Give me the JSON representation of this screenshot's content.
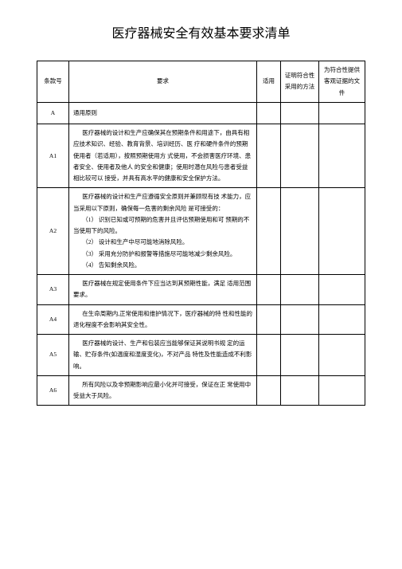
{
  "title": "医疗器械安全有效基本要求清单",
  "headers": {
    "col_num": "条款号",
    "col_req": "要求",
    "col_shiyong": "适用",
    "col_method": "证明符合性采用的方法",
    "col_evidence": "为符合性提供客观证据的文件"
  },
  "rows": [
    {
      "num": "A",
      "req": "通用原则",
      "shiyong": "",
      "method": "",
      "evidence": "",
      "section": true
    },
    {
      "num": "A1",
      "req": "医疗器械的设计和生产应确保其在预期条件和用途下，由具有相应技术知识、经验、教育背景、培训经历、医 疗和硬件条件的预期使用者（若适用），按照预期使用方 式使用，不会损害医疗环境、患者安全、使用者及他人 的安全和健康；使用时潜在风险与患者受益相比较可以 接受，并具有高水平的健康和安全保护方法。",
      "shiyong": "",
      "method": "",
      "evidence": ""
    },
    {
      "num": "A2",
      "req": "医疗器械的设计和生产应遵循安全原则并兼顾现有技 术能力，应当采用以下原则，确保每一危害的剩余风险 是可接受的：\n（1）   识别已知或可预期的危害并且评估预期使用和可 预期的不当使用下的风险。\n（2）   设计和生产中尽可能地消除风险。\n（3）   采用充分防护和报警等措施尽可能地减少剩余风险。\n（4）   告知剩余风险。",
      "shiyong": "",
      "method": "",
      "evidence": ""
    },
    {
      "num": "A3",
      "req": "医疗器械在规定使用条件下应当达到其预期性能，满足 适用范围要求。",
      "shiyong": "",
      "method": "",
      "evidence": ""
    },
    {
      "num": "A4",
      "req": "在生命周期内,正常使用和维护情况下，医疗器械的特 性和性能的退化程度不会影响其安全性。",
      "shiyong": "",
      "method": "",
      "evidence": ""
    },
    {
      "num": "A5",
      "req": "医疗器械的设计、生产和包装应当能够保证其说明书规 定的运输、贮存条件(如温度和湿度变化)，不对产品 特性及性能造成不利影响。",
      "shiyong": "",
      "method": "",
      "evidence": ""
    },
    {
      "num": "A6",
      "req": "所有风险以及非预期影响应最小化并可接受，保证在正 常使用中受益大于风险。",
      "shiyong": "",
      "method": "",
      "evidence": ""
    }
  ],
  "style": {
    "background": "#ffffff",
    "text_color": "#000000",
    "border_color": "#000000",
    "title_fontsize": 16,
    "cell_fontsize": 7.5,
    "font_family": "SimSun"
  }
}
